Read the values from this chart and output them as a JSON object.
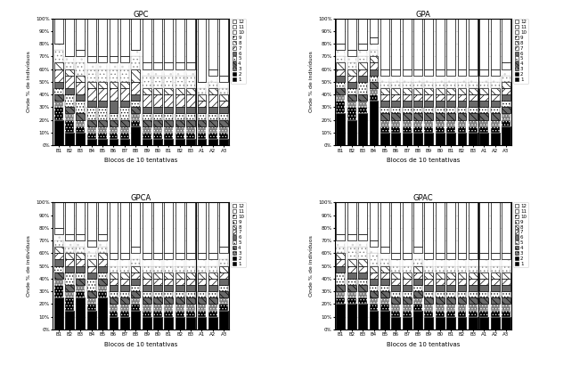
{
  "groups": [
    "GPC",
    "GPA",
    "GPCA",
    "GPAC"
  ],
  "x_labels": [
    "B1",
    "B2",
    "B3",
    "B4",
    "B5",
    "B6",
    "B7",
    "B8",
    "B9",
    "B0",
    "B1",
    "B2",
    "B3",
    "A1",
    "A2",
    "A3"
  ],
  "xlabel": "Blocos de 10 tentativas",
  "ylabel": "Onde % de indivíduos",
  "legend_labels": [
    "1",
    "2",
    "3",
    "4",
    "5",
    "6",
    "7",
    "8",
    "9",
    "10",
    "11",
    "12"
  ],
  "n_feedbacks": 12,
  "GPC": [
    [
      20,
      10,
      10,
      5,
      5,
      5,
      5,
      15,
      5,
      5,
      5,
      5,
      5,
      5,
      5,
      5
    ],
    [
      10,
      10,
      5,
      5,
      5,
      5,
      5,
      5,
      5,
      5,
      5,
      5,
      5,
      5,
      5,
      5
    ],
    [
      5,
      5,
      5,
      5,
      5,
      5,
      5,
      5,
      5,
      5,
      5,
      5,
      5,
      5,
      5,
      5
    ],
    [
      5,
      5,
      5,
      5,
      5,
      5,
      5,
      5,
      5,
      5,
      5,
      5,
      5,
      5,
      5,
      5
    ],
    [
      5,
      10,
      10,
      10,
      10,
      5,
      10,
      5,
      5,
      5,
      5,
      5,
      5,
      5,
      5,
      5
    ],
    [
      5,
      5,
      5,
      5,
      5,
      10,
      5,
      5,
      5,
      5,
      5,
      5,
      5,
      5,
      5,
      5
    ],
    [
      10,
      10,
      10,
      10,
      10,
      10,
      10,
      10,
      10,
      10,
      10,
      10,
      10,
      5,
      10,
      5
    ],
    [
      5,
      5,
      5,
      5,
      5,
      5,
      5,
      10,
      5,
      5,
      5,
      5,
      5,
      5,
      5,
      5
    ],
    [
      10,
      5,
      10,
      10,
      10,
      10,
      10,
      10,
      10,
      10,
      10,
      10,
      10,
      5,
      5,
      5
    ],
    [
      5,
      5,
      5,
      5,
      5,
      5,
      5,
      5,
      5,
      5,
      5,
      5,
      5,
      5,
      5,
      5
    ],
    [
      0,
      0,
      5,
      5,
      5,
      5,
      5,
      0,
      5,
      5,
      5,
      5,
      5,
      0,
      5,
      5
    ],
    [
      20,
      30,
      25,
      35,
      35,
      35,
      35,
      25,
      40,
      40,
      40,
      40,
      40,
      60,
      55,
      60
    ]
  ],
  "GPA": [
    [
      25,
      20,
      25,
      35,
      10,
      10,
      10,
      10,
      10,
      10,
      10,
      10,
      10,
      10,
      10,
      15
    ],
    [
      10,
      10,
      5,
      5,
      5,
      5,
      5,
      5,
      5,
      5,
      5,
      5,
      5,
      5,
      5,
      5
    ],
    [
      5,
      5,
      5,
      5,
      5,
      5,
      5,
      5,
      5,
      5,
      5,
      5,
      5,
      5,
      5,
      5
    ],
    [
      5,
      5,
      5,
      5,
      5,
      5,
      5,
      5,
      5,
      5,
      5,
      5,
      5,
      5,
      5,
      5
    ],
    [
      5,
      5,
      10,
      5,
      5,
      5,
      5,
      5,
      5,
      5,
      5,
      5,
      5,
      5,
      5,
      5
    ],
    [
      5,
      5,
      5,
      5,
      5,
      5,
      5,
      5,
      5,
      5,
      5,
      5,
      5,
      5,
      5,
      5
    ],
    [
      5,
      5,
      5,
      5,
      5,
      5,
      5,
      5,
      5,
      5,
      5,
      5,
      5,
      5,
      5,
      5
    ],
    [
      5,
      5,
      5,
      5,
      5,
      5,
      5,
      5,
      5,
      5,
      5,
      5,
      5,
      5,
      5,
      5
    ],
    [
      5,
      5,
      5,
      5,
      5,
      5,
      5,
      5,
      5,
      5,
      5,
      5,
      5,
      5,
      5,
      5
    ],
    [
      5,
      5,
      5,
      5,
      5,
      5,
      5,
      5,
      5,
      5,
      5,
      5,
      5,
      5,
      5,
      5
    ],
    [
      5,
      5,
      5,
      5,
      5,
      5,
      5,
      5,
      5,
      5,
      5,
      5,
      5,
      5,
      5,
      5
    ],
    [
      20,
      25,
      20,
      20,
      40,
      45,
      45,
      50,
      50,
      50,
      50,
      50,
      50,
      45,
      45,
      40
    ]
  ],
  "GPCA": [
    [
      25,
      15,
      25,
      15,
      25,
      10,
      10,
      15,
      10,
      10,
      10,
      10,
      10,
      10,
      10,
      15
    ],
    [
      10,
      10,
      5,
      5,
      5,
      5,
      5,
      5,
      5,
      5,
      5,
      5,
      5,
      5,
      5,
      5
    ],
    [
      5,
      5,
      5,
      5,
      5,
      5,
      5,
      5,
      5,
      5,
      5,
      5,
      5,
      5,
      5,
      5
    ],
    [
      5,
      5,
      5,
      5,
      5,
      5,
      5,
      5,
      5,
      5,
      5,
      5,
      5,
      5,
      5,
      5
    ],
    [
      5,
      10,
      5,
      10,
      5,
      5,
      5,
      5,
      5,
      5,
      5,
      5,
      5,
      5,
      5,
      5
    ],
    [
      5,
      5,
      5,
      5,
      5,
      5,
      5,
      5,
      5,
      5,
      5,
      5,
      5,
      5,
      5,
      5
    ],
    [
      5,
      5,
      5,
      5,
      5,
      5,
      5,
      5,
      5,
      5,
      5,
      5,
      5,
      5,
      5,
      5
    ],
    [
      5,
      5,
      5,
      5,
      5,
      5,
      5,
      5,
      5,
      5,
      5,
      5,
      5,
      5,
      5,
      5
    ],
    [
      5,
      5,
      5,
      5,
      5,
      5,
      5,
      5,
      5,
      5,
      5,
      5,
      5,
      5,
      5,
      5
    ],
    [
      5,
      5,
      5,
      5,
      5,
      5,
      5,
      5,
      5,
      5,
      5,
      5,
      5,
      5,
      5,
      5
    ],
    [
      5,
      5,
      5,
      5,
      5,
      5,
      5,
      5,
      5,
      5,
      5,
      5,
      5,
      5,
      5,
      5
    ],
    [
      20,
      25,
      30,
      30,
      30,
      45,
      50,
      45,
      50,
      55,
      55,
      55,
      55,
      50,
      50,
      50
    ]
  ],
  "GPAC": [
    [
      20,
      20,
      20,
      15,
      15,
      10,
      10,
      15,
      10,
      10,
      10,
      10,
      10,
      10,
      10,
      10
    ],
    [
      5,
      5,
      5,
      5,
      5,
      5,
      5,
      5,
      5,
      5,
      5,
      5,
      5,
      5,
      5,
      5
    ],
    [
      5,
      5,
      5,
      5,
      5,
      5,
      5,
      5,
      5,
      5,
      5,
      5,
      5,
      5,
      5,
      5
    ],
    [
      5,
      5,
      5,
      5,
      5,
      5,
      5,
      5,
      5,
      5,
      5,
      5,
      5,
      5,
      5,
      5
    ],
    [
      10,
      5,
      5,
      5,
      5,
      5,
      5,
      5,
      5,
      5,
      5,
      5,
      5,
      5,
      5,
      5
    ],
    [
      5,
      5,
      5,
      5,
      5,
      5,
      5,
      5,
      5,
      5,
      5,
      5,
      5,
      5,
      5,
      5
    ],
    [
      5,
      5,
      5,
      5,
      5,
      5,
      5,
      5,
      5,
      5,
      5,
      5,
      5,
      5,
      5,
      5
    ],
    [
      5,
      5,
      5,
      5,
      5,
      5,
      5,
      5,
      5,
      5,
      5,
      5,
      5,
      5,
      5,
      5
    ],
    [
      5,
      10,
      10,
      10,
      5,
      5,
      5,
      5,
      5,
      5,
      5,
      5,
      5,
      5,
      5,
      5
    ],
    [
      5,
      5,
      5,
      5,
      5,
      5,
      5,
      5,
      5,
      5,
      5,
      5,
      5,
      5,
      5,
      5
    ],
    [
      5,
      5,
      5,
      5,
      5,
      5,
      5,
      5,
      5,
      5,
      5,
      5,
      5,
      5,
      5,
      5
    ],
    [
      25,
      25,
      25,
      30,
      35,
      45,
      50,
      45,
      50,
      55,
      55,
      55,
      55,
      55,
      55,
      60
    ]
  ],
  "styles": [
    {
      "fc": "black",
      "hatch": "",
      "ec": "black"
    },
    {
      "fc": "black",
      "hatch": ".....",
      "ec": "white"
    },
    {
      "fc": "gray",
      "hatch": ".....",
      "ec": "white"
    },
    {
      "fc": "dimgray",
      "hatch": "\\\\",
      "ec": "black"
    },
    {
      "fc": "white",
      "hatch": ".....",
      "ec": "black"
    },
    {
      "fc": "dimgray",
      "hatch": "",
      "ec": "black"
    },
    {
      "fc": "white",
      "hatch": "////",
      "ec": "black"
    },
    {
      "fc": "white",
      "hatch": "\\\\",
      "ec": "black"
    },
    {
      "fc": "white",
      "hatch": ".....",
      "ec": "gray"
    },
    {
      "fc": "white",
      "hatch": ".....",
      "ec": "lightgray"
    },
    {
      "fc": "white",
      "hatch": "",
      "ec": "black"
    },
    {
      "fc": "white",
      "hatch": "",
      "ec": "black"
    }
  ],
  "bar_width": 0.8,
  "figsize": [
    6.6,
    4.11
  ],
  "dpi": 100
}
